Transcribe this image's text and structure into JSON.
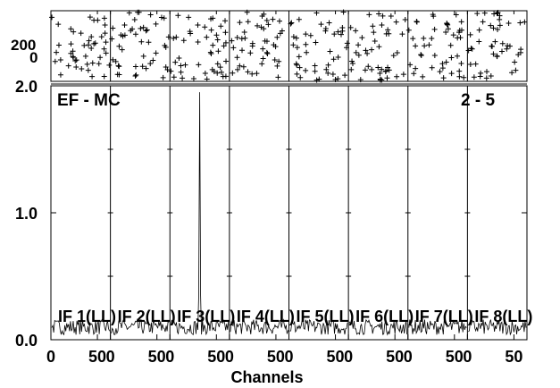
{
  "chart_data": {
    "type": "line",
    "title": "EF - MC",
    "baseline_label": "2 - 5",
    "xlabel": "Channels",
    "phase_ylabels": [
      "200",
      "0"
    ],
    "amp_yticks": [
      {
        "label": "0.0",
        "value": 0.0
      },
      {
        "label": "1.0",
        "value": 1.0
      },
      {
        "label": "2.0",
        "value": 2.0
      }
    ],
    "amp_ylim": [
      0.0,
      2.0
    ],
    "phase_ylim": [
      -180,
      300
    ],
    "x_per_panel": {
      "range": [
        0,
        64
      ],
      "tick_values": [
        0,
        50
      ],
      "tick_labels": [
        "0",
        "50"
      ]
    },
    "panels": [
      {
        "label": "IF 1(LL)",
        "noise_floor": 0.1,
        "peak": null
      },
      {
        "label": "IF 2(LL)",
        "noise_floor": 0.1,
        "peak": null
      },
      {
        "label": "IF 3(LL)",
        "noise_floor": 0.1,
        "peak": {
          "channel": 32,
          "amplitude": 1.95
        }
      },
      {
        "label": "IF 4(LL)",
        "noise_floor": 0.1,
        "peak": null
      },
      {
        "label": "IF 5(LL)",
        "noise_floor": 0.1,
        "peak": null
      },
      {
        "label": "IF 6(LL)",
        "noise_floor": 0.1,
        "peak": null
      },
      {
        "label": "IF 7(LL)",
        "noise_floor": 0.1,
        "peak": null
      },
      {
        "label": "IF 8(LL)",
        "noise_floor": 0.1,
        "peak": null
      }
    ]
  }
}
